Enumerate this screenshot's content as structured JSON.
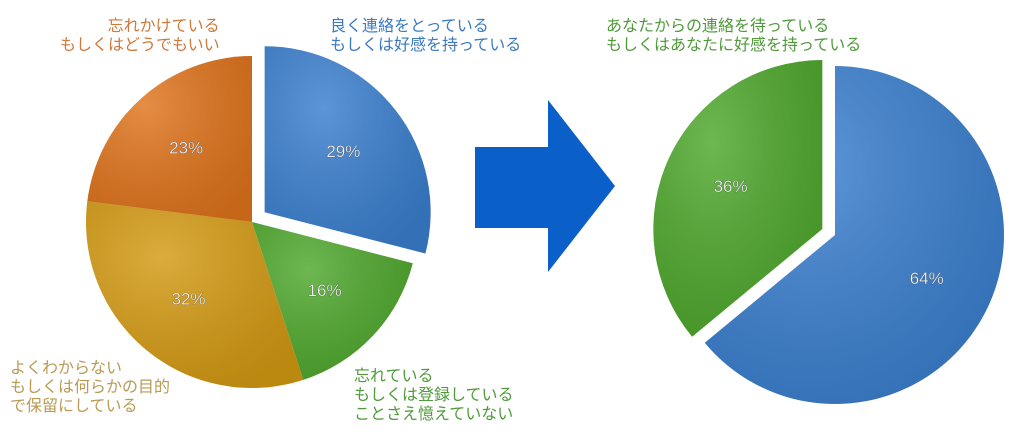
{
  "chart_data": [
    {
      "type": "pie",
      "slices": [
        {
          "label": "良く連絡をとっている\nもしくは好感を持っている",
          "value": 29,
          "display": "29%",
          "color": "#3a7fcf",
          "exploded": true
        },
        {
          "label": "忘れている\nもしくは登録している\nことさえ憶えていない",
          "value": 16,
          "display": "16%",
          "color": "#4ea82c",
          "exploded": false
        },
        {
          "label": "よくわからない\nもしくは何らかの目的\nで保留にしている",
          "value": 32,
          "display": "32%",
          "color": "#d49a12",
          "exploded": false
        },
        {
          "label": "忘れかけている\nもしくはどうでもいい",
          "value": 23,
          "display": "23%",
          "color": "#e0741c",
          "exploded": false
        }
      ]
    },
    {
      "type": "pie",
      "slices": [
        {
          "label": "",
          "value": 64,
          "display": "64%",
          "color": "#3a7fcf",
          "exploded": false
        },
        {
          "label": "あなたからの連絡を待っている\nもしくはあなたに好感を持っている",
          "value": 36,
          "display": "36%",
          "color": "#4ea82c",
          "exploded": true
        }
      ]
    }
  ],
  "arrow": {
    "icon": "right-arrow-icon",
    "color": "#0b5fc9"
  },
  "label_colors": {
    "blue": "#3b7ac0",
    "green": "#4f9a3a",
    "yellow": "#b89a55",
    "orange": "#d0783a"
  }
}
